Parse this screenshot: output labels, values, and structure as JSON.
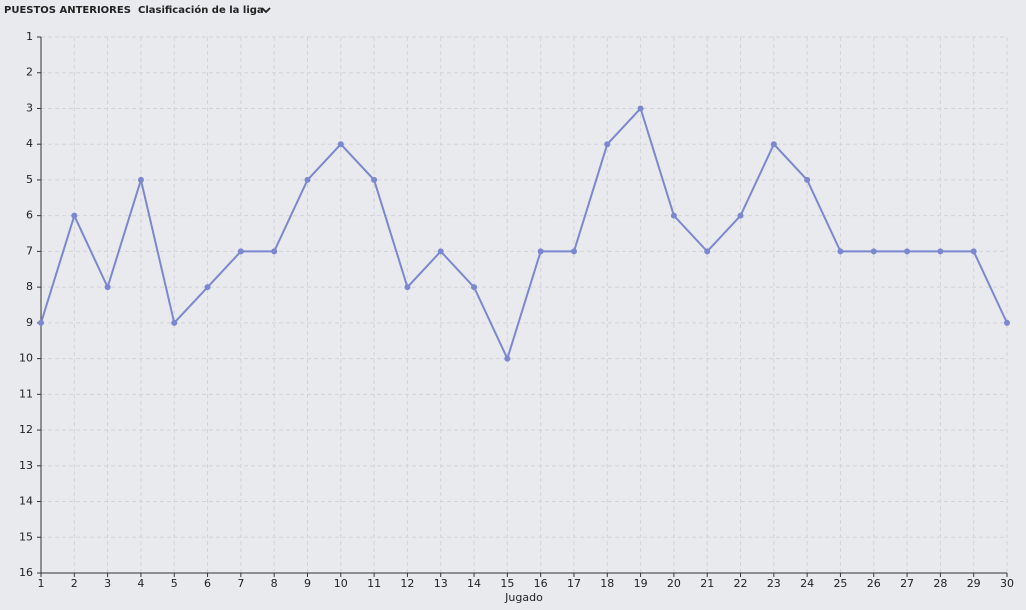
{
  "header": {
    "title": "PUESTOS ANTERIORES",
    "dropdown": "Clasificación de la liga"
  },
  "chart_data": {
    "type": "line",
    "x_label": "Jugado",
    "x": [
      1,
      2,
      3,
      4,
      5,
      6,
      7,
      8,
      9,
      10,
      11,
      12,
      13,
      14,
      15,
      16,
      17,
      18,
      19,
      20,
      21,
      22,
      23,
      24,
      25,
      26,
      27,
      28,
      29,
      30
    ],
    "series": [
      {
        "color": "#7b87cf",
        "values": [
          9,
          6,
          8,
          5,
          9,
          8,
          7,
          7,
          5,
          4,
          5,
          8,
          7,
          8,
          10,
          7,
          7,
          4,
          3,
          6,
          7,
          6,
          4,
          5,
          7,
          7,
          7,
          7,
          7,
          9
        ]
      }
    ],
    "xlim": [
      1,
      30
    ],
    "xticks": [
      1,
      2,
      3,
      4,
      5,
      6,
      7,
      8,
      9,
      10,
      11,
      12,
      13,
      14,
      15,
      16,
      17,
      18,
      19,
      20,
      21,
      22,
      23,
      24,
      25,
      26,
      27,
      28,
      29,
      30
    ],
    "ylim": [
      1,
      16
    ],
    "y_reversed": true,
    "yticks": [
      1,
      2,
      3,
      4,
      5,
      6,
      7,
      8,
      9,
      10,
      11,
      12,
      13,
      14,
      15,
      16
    ],
    "grid": true
  }
}
